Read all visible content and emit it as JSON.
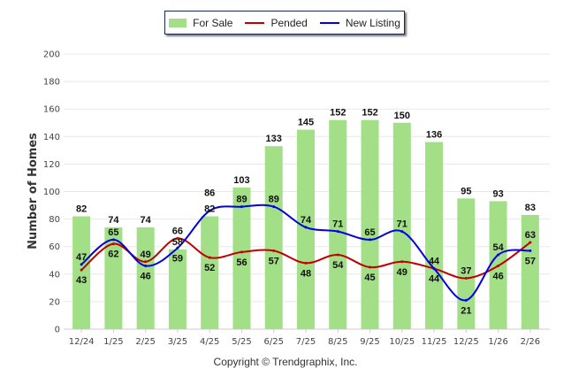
{
  "chart_data": {
    "type": "bar",
    "title": "",
    "xlabel": "",
    "ylabel": "Number of Homes",
    "ylim": [
      0,
      200
    ],
    "yticks": [
      0,
      20,
      40,
      60,
      80,
      100,
      120,
      140,
      160,
      180,
      200
    ],
    "grid": true,
    "legend_position": "top-center",
    "categories": [
      "12/24",
      "1/25",
      "2/25",
      "3/25",
      "4/25",
      "5/25",
      "6/25",
      "7/25",
      "8/25",
      "9/25",
      "10/25",
      "11/25",
      "12/25",
      "1/26",
      "2/26"
    ],
    "series": [
      {
        "name": "For Sale",
        "kind": "bar",
        "color": "#a3df87",
        "values": [
          82,
          74,
          74,
          58,
          82,
          103,
          133,
          145,
          152,
          152,
          150,
          136,
          95,
          93,
          83
        ]
      },
      {
        "name": "Pended",
        "kind": "line",
        "color": "#c00000",
        "values": [
          43,
          62,
          49,
          66,
          52,
          56,
          57,
          48,
          54,
          45,
          49,
          44,
          37,
          46,
          63
        ]
      },
      {
        "name": "New Listing",
        "kind": "line",
        "color": "#0000e0",
        "values": [
          47,
          65,
          46,
          59,
          86,
          89,
          89,
          74,
          71,
          65,
          71,
          44,
          21,
          54,
          57
        ]
      }
    ]
  },
  "legend": {
    "items": [
      "For Sale",
      "Pended",
      "New Listing"
    ]
  },
  "footer": {
    "copyright": "Copyright © Trendgraphix, Inc."
  }
}
